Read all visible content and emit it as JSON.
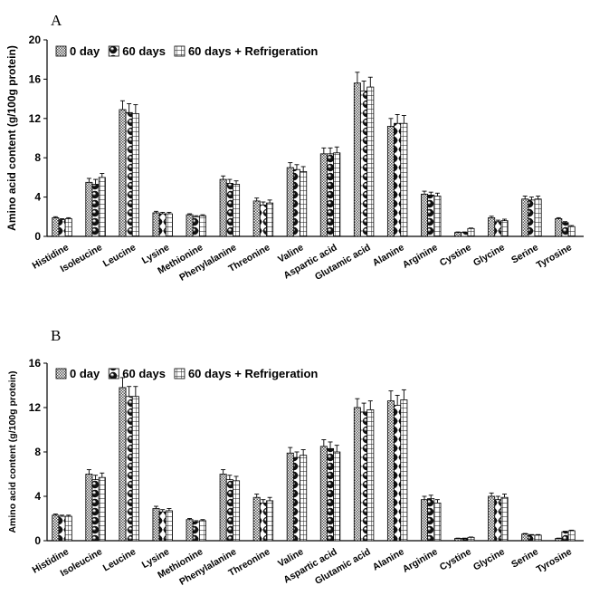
{
  "chart_data": [
    {
      "type": "bar",
      "panel_label": "A",
      "ylabel": "Amino acid content (g/100g protein)",
      "ylim": [
        0,
        20
      ],
      "yticks": [
        0,
        4,
        8,
        12,
        16,
        20
      ],
      "legend_position": "top-left",
      "categories": [
        "Histidine",
        "Isoleucine",
        "Leucine",
        "Lysine",
        "Methionine",
        "Phenylalanine",
        "Threonine",
        "Valine",
        "Aspartic acid",
        "Glutamic acid",
        "Alanine",
        "Arginine",
        "Cystine",
        "Glycine",
        "Serine",
        "Tyrosine"
      ],
      "series": [
        {
          "name": "0 day",
          "values": [
            1.9,
            5.5,
            12.9,
            2.4,
            2.2,
            5.8,
            3.6,
            7.0,
            8.4,
            15.6,
            11.2,
            4.3,
            0.4,
            1.9,
            3.8,
            1.8
          ],
          "errors": [
            0.1,
            0.4,
            0.9,
            0.15,
            0.1,
            0.35,
            0.3,
            0.5,
            0.6,
            1.1,
            0.8,
            0.3,
            0.05,
            0.15,
            0.3,
            0.1
          ]
        },
        {
          "name": "60 days",
          "values": [
            1.7,
            5.3,
            12.6,
            2.3,
            2.0,
            5.4,
            3.2,
            6.8,
            8.4,
            14.8,
            11.5,
            4.2,
            0.4,
            1.5,
            3.7,
            1.4
          ],
          "errors": [
            0.1,
            0.5,
            0.9,
            0.15,
            0.1,
            0.4,
            0.3,
            0.5,
            0.6,
            1.0,
            0.9,
            0.3,
            0.05,
            0.15,
            0.3,
            0.1
          ]
        },
        {
          "name": "60 days + Refrigeration",
          "values": [
            1.8,
            6.0,
            12.5,
            2.3,
            2.1,
            5.3,
            3.4,
            6.6,
            8.5,
            15.2,
            11.5,
            4.1,
            0.8,
            1.6,
            3.8,
            1.0
          ],
          "errors": [
            0.1,
            0.4,
            0.9,
            0.15,
            0.1,
            0.35,
            0.3,
            0.5,
            0.6,
            1.0,
            0.8,
            0.3,
            0.05,
            0.15,
            0.3,
            0.1
          ]
        }
      ]
    },
    {
      "type": "bar",
      "panel_label": "B",
      "ylabel": "Amino acid content (g/100g protein)",
      "ylim": [
        0,
        16
      ],
      "yticks": [
        0,
        4,
        8,
        12,
        16
      ],
      "legend_position": "top-left",
      "categories": [
        "Histidine",
        "Isoleucine",
        "Leucine",
        "Lysine",
        "Methionine",
        "Phenylalanine",
        "Threonine",
        "Valine",
        "Aspartic acid",
        "Glutamic acid",
        "Alanine",
        "Arginine",
        "Cystine",
        "Glycine",
        "Serine",
        "Tyrosine"
      ],
      "series": [
        {
          "name": "0 day",
          "values": [
            2.3,
            6.0,
            13.8,
            2.9,
            1.9,
            6.0,
            3.9,
            7.9,
            8.5,
            12.0,
            12.6,
            3.7,
            0.2,
            4.0,
            0.6,
            0.2
          ],
          "errors": [
            0.1,
            0.4,
            0.9,
            0.2,
            0.1,
            0.4,
            0.3,
            0.5,
            0.6,
            0.8,
            0.9,
            0.3,
            0.03,
            0.3,
            0.05,
            0.03
          ]
        },
        {
          "name": "60 days",
          "values": [
            2.2,
            5.5,
            13.0,
            2.6,
            1.7,
            5.5,
            3.4,
            7.5,
            8.3,
            11.6,
            12.2,
            3.8,
            0.2,
            3.7,
            0.5,
            0.8
          ],
          "errors": [
            0.1,
            0.4,
            0.9,
            0.2,
            0.1,
            0.4,
            0.3,
            0.5,
            0.6,
            0.8,
            0.9,
            0.3,
            0.03,
            0.3,
            0.05,
            0.05
          ]
        },
        {
          "name": "60 days + Refrigeration",
          "values": [
            2.2,
            5.7,
            13.0,
            2.7,
            1.8,
            5.4,
            3.6,
            7.7,
            8.0,
            11.8,
            12.7,
            3.4,
            0.3,
            3.9,
            0.5,
            0.9
          ],
          "errors": [
            0.1,
            0.4,
            0.9,
            0.2,
            0.1,
            0.4,
            0.3,
            0.5,
            0.6,
            0.8,
            0.9,
            0.3,
            0.03,
            0.3,
            0.05,
            0.05
          ]
        }
      ]
    }
  ]
}
